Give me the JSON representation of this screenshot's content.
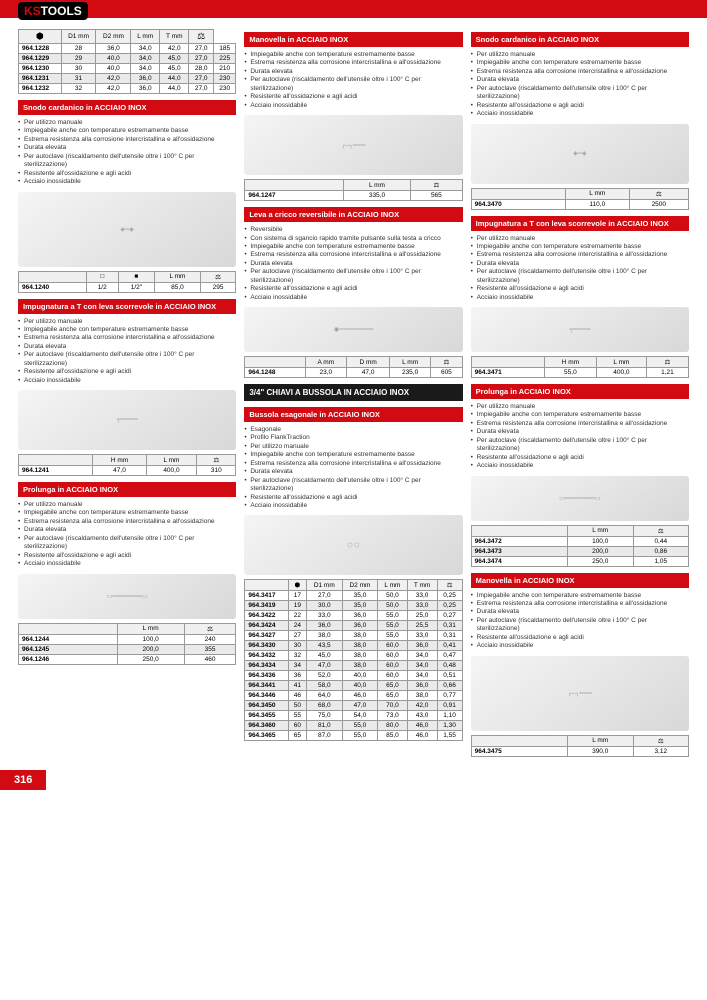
{
  "logo": {
    "a": "KS",
    "b": "TOOLS"
  },
  "pagenum": "316",
  "icons": {
    "sq_empty": "□",
    "sq_full": "■",
    "weight": "⚖",
    "hex": "⬢"
  },
  "col1": {
    "table1": {
      "headers": [
        "",
        "D1 mm",
        "D2 mm",
        "L mm",
        "T mm",
        ""
      ],
      "rows": [
        [
          "964.1228",
          "28",
          "36,0",
          "34,0",
          "42,0",
          "27,0",
          "185"
        ],
        [
          "964.1229",
          "29",
          "40,0",
          "34,0",
          "45,0",
          "27,0",
          "225"
        ],
        [
          "964.1230",
          "30",
          "40,0",
          "34,0",
          "45,0",
          "28,0",
          "210"
        ],
        [
          "964.1231",
          "31",
          "42,0",
          "36,0",
          "44,0",
          "27,0",
          "230"
        ],
        [
          "964.1232",
          "32",
          "42,0",
          "36,0",
          "44,0",
          "27,0",
          "230"
        ]
      ]
    },
    "sec1": {
      "title": "Snodo cardanico in ACCIAIO INOX",
      "bullets": [
        "Per utilizzo manuale",
        "Impiegabile anche con temperature estremamente basse",
        "Estrema resistenza alla corrosione intercristallina e all'ossidazione",
        "Durata elevata",
        "Per autoclave (riscaldamento dell'utensile oltre i 100° C per sterilizzazione)",
        "Resistente all'ossidazione e agli acidi",
        "Acciaio inossidabile"
      ],
      "theaders": [
        "",
        "",
        "L mm",
        ""
      ],
      "trows": [
        [
          "964.1240",
          "1/2",
          "1/2\"",
          "85,0",
          "295"
        ]
      ]
    },
    "sec2": {
      "title": "Impugnatura a T con leva scorrevole in ACCIAIO INOX",
      "bullets": [
        "Per utilizzo manuale",
        "Impiegabile anche con temperature estremamente basse",
        "Estrema resistenza alla corrosione intercristallina e all'ossidazione",
        "Durata elevata",
        "Per autoclave (riscaldamento dell'utensile oltre i 100° C per sterilizzazione)",
        "Resistente all'ossidazione e agli acidi",
        "Acciaio inossidabile"
      ],
      "theaders": [
        "H mm",
        "L mm",
        ""
      ],
      "trows": [
        [
          "964.1241",
          "47,0",
          "400,0",
          "310"
        ]
      ]
    },
    "sec3": {
      "title": "Prolunga in ACCIAIO INOX",
      "bullets": [
        "Per utilizzo manuale",
        "Impiegabile anche con temperature estremamente basse",
        "Estrema resistenza alla corrosione intercristallina e all'ossidazione",
        "Durata elevata",
        "Per autoclave (riscaldamento dell'utensile oltre i 100° C per sterilizzazione)",
        "Resistente all'ossidazione e agli acidi",
        "Acciaio inossidabile"
      ],
      "theaders": [
        "L mm",
        ""
      ],
      "trows": [
        [
          "964.1244",
          "100,0",
          "240"
        ],
        [
          "964.1245",
          "200,0",
          "355"
        ],
        [
          "964.1246",
          "250,0",
          "460"
        ]
      ]
    }
  },
  "col2": {
    "sec1": {
      "title": "Manovella in ACCIAIO INOX",
      "bullets": [
        "Impiegabile anche con temperature estremamente basse",
        "Estrema resistenza alla corrosione intercristallina e all'ossidazione",
        "Durata elevata",
        "Per autoclave (riscaldamento dell'utensile oltre i 100° C per sterilizzazione)",
        "Resistente all'ossidazione e agli acidi",
        "Acciaio inossidabile"
      ],
      "theaders": [
        "L mm",
        ""
      ],
      "trows": [
        [
          "964.1247",
          "335,0",
          "565"
        ]
      ]
    },
    "sec2": {
      "title": "Leva a cricco reversibile in ACCIAIO INOX",
      "bullets": [
        "Reversibile",
        "Con sistema di sgancio rapido tramite pulsante sulla testa a cricco",
        "Impiegabile anche con temperature estremamente basse",
        "Estrema resistenza alla corrosione intercristallina e all'ossidazione",
        "Durata elevata",
        "Per autoclave (riscaldamento dell'utensile oltre i 100° C per sterilizzazione)",
        "Resistente all'ossidazione e agli acidi",
        "Acciaio inossidabile"
      ],
      "theaders": [
        "A mm",
        "D mm",
        "L mm",
        ""
      ],
      "trows": [
        [
          "964.1248",
          "23,0",
          "47,0",
          "235,0",
          "605"
        ]
      ]
    },
    "black": "3/4\" CHIAVI A BUSSOLA IN ACCIAIO INOX",
    "sec3": {
      "title": "Bussola esagonale in ACCIAIO INOX",
      "bullets": [
        "Esagonale",
        "Profilo FlankTraction",
        "Per utilizzo manuale",
        "Impiegabile anche con temperature estremamente basse",
        "Estrema resistenza alla corrosione intercristallina e all'ossidazione",
        "Durata elevata",
        "Per autoclave (riscaldamento dell'utensile oltre i 100° C per sterilizzazione)",
        "Resistente all'ossidazione e agli acidi",
        "Acciaio inossidabile"
      ],
      "theaders": [
        "",
        "D1 mm",
        "D2 mm",
        "L mm",
        "T mm",
        ""
      ],
      "trows": [
        [
          "964.3417",
          "17",
          "27,0",
          "35,0",
          "50,0",
          "33,0",
          "0,25"
        ],
        [
          "964.3419",
          "19",
          "30,0",
          "35,0",
          "50,0",
          "33,0",
          "0,25"
        ],
        [
          "964.3422",
          "22",
          "33,0",
          "36,0",
          "55,0",
          "25,0",
          "0,27"
        ],
        [
          "964.3424",
          "24",
          "36,0",
          "36,0",
          "55,0",
          "25,5",
          "0,31"
        ],
        [
          "964.3427",
          "27",
          "38,0",
          "38,0",
          "55,0",
          "33,0",
          "0,31"
        ],
        [
          "964.3430",
          "30",
          "43,5",
          "38,0",
          "60,0",
          "36,0",
          "0,41"
        ],
        [
          "964.3432",
          "32",
          "45,0",
          "38,0",
          "60,0",
          "34,0",
          "0,47"
        ],
        [
          "964.3434",
          "34",
          "47,0",
          "38,0",
          "60,0",
          "34,0",
          "0,48"
        ],
        [
          "964.3436",
          "36",
          "52,0",
          "40,0",
          "60,0",
          "34,0",
          "0,51"
        ],
        [
          "964.3441",
          "41",
          "58,0",
          "40,0",
          "65,0",
          "36,0",
          "0,66"
        ],
        [
          "964.3446",
          "46",
          "64,0",
          "46,0",
          "65,0",
          "38,0",
          "0,77"
        ],
        [
          "964.3450",
          "50",
          "68,0",
          "47,0",
          "70,0",
          "42,0",
          "0,91"
        ],
        [
          "964.3455",
          "55",
          "75,0",
          "54,0",
          "73,0",
          "43,0",
          "1,10"
        ],
        [
          "964.3460",
          "60",
          "81,0",
          "55,0",
          "80,0",
          "46,0",
          "1,30"
        ],
        [
          "964.3465",
          "65",
          "87,0",
          "55,0",
          "85,0",
          "46,0",
          "1,55"
        ]
      ]
    }
  },
  "col3": {
    "sec1": {
      "title": "Snodo cardanico in ACCIAIO INOX",
      "bullets": [
        "Per utilizzo manuale",
        "Impiegabile anche con temperature estremamente basse",
        "Estrema resistenza alla corrosione intercristallina e all'ossidazione",
        "Durata elevata",
        "Per autoclave (riscaldamento dell'utensile oltre i 100° C per sterilizzazione)",
        "Resistente all'ossidazione e agli acidi",
        "Acciaio inossidabile"
      ],
      "theaders": [
        "L mm",
        ""
      ],
      "trows": [
        [
          "964.3470",
          "110,0",
          "2500"
        ]
      ]
    },
    "sec2": {
      "title": "Impugnatura a T con leva scorrevole in ACCIAIO INOX",
      "bullets": [
        "Per utilizzo manuale",
        "Impiegabile anche con temperature estremamente basse",
        "Estrema resistenza alla corrosione intercristallina e all'ossidazione",
        "Durata elevata",
        "Per autoclave (riscaldamento dell'utensile oltre i 100° C per sterilizzazione)",
        "Resistente all'ossidazione e agli acidi",
        "Acciaio inossidabile"
      ],
      "theaders": [
        "H mm",
        "L mm",
        ""
      ],
      "trows": [
        [
          "964.3471",
          "55,0",
          "400,0",
          "1,21"
        ]
      ]
    },
    "sec3": {
      "title": "Prolunga in ACCIAIO INOX",
      "bullets": [
        "Per utilizzo manuale",
        "Impiegabile anche con temperature estremamente basse",
        "Estrema resistenza alla corrosione intercristallina e all'ossidazione",
        "Durata elevata",
        "Per autoclave (riscaldamento dell'utensile oltre i 100° C per sterilizzazione)",
        "Resistente all'ossidazione e agli acidi",
        "Acciaio inossidabile"
      ],
      "theaders": [
        "L mm",
        ""
      ],
      "trows": [
        [
          "964.3472",
          "100,0",
          "0,44"
        ],
        [
          "964.3473",
          "200,0",
          "0,86"
        ],
        [
          "964.3474",
          "250,0",
          "1,05"
        ]
      ]
    },
    "sec4": {
      "title": "Manovella in ACCIAIO INOX",
      "bullets": [
        "Impiegabile anche con temperature estremamente basse",
        "Estrema resistenza alla corrosione intercristallina e all'ossidazione",
        "Durata elevata",
        "Per autoclave (riscaldamento dell'utensile oltre i 100° C per sterilizzazione)",
        "Resistente all'ossidazione e agli acidi",
        "Acciaio inossidabile"
      ],
      "theaders": [
        "L mm",
        ""
      ],
      "trows": [
        [
          "964.3475",
          "390,0",
          "3,12"
        ]
      ]
    }
  }
}
